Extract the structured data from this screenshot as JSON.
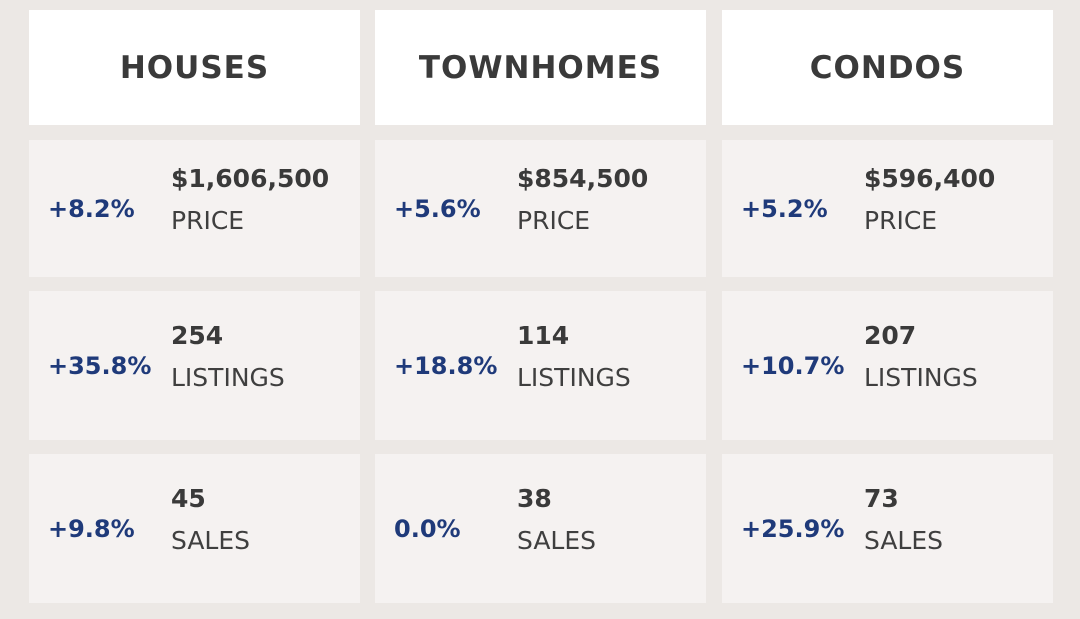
{
  "columns": [
    {
      "title": "HOUSES",
      "metrics": [
        {
          "change": "+8.2%",
          "value": "$1,606,500",
          "label": "PRICE"
        },
        {
          "change": "+35.8%",
          "value": "254",
          "label": "LISTINGS"
        },
        {
          "change": "+9.8%",
          "value": "45",
          "label": "SALES"
        }
      ]
    },
    {
      "title": "TOWNHOMES",
      "metrics": [
        {
          "change": "+5.6%",
          "value": "$854,500",
          "label": "PRICE"
        },
        {
          "change": "+18.8%",
          "value": "114",
          "label": "LISTINGS"
        },
        {
          "change": "0.0%",
          "value": "38",
          "label": "SALES"
        }
      ]
    },
    {
      "title": "CONDOS",
      "metrics": [
        {
          "change": "+5.2%",
          "value": "$596,400",
          "label": "PRICE"
        },
        {
          "change": "+10.7%",
          "value": "207",
          "label": "LISTINGS"
        },
        {
          "change": "+25.9%",
          "value": "73",
          "label": "SALES"
        }
      ]
    }
  ]
}
